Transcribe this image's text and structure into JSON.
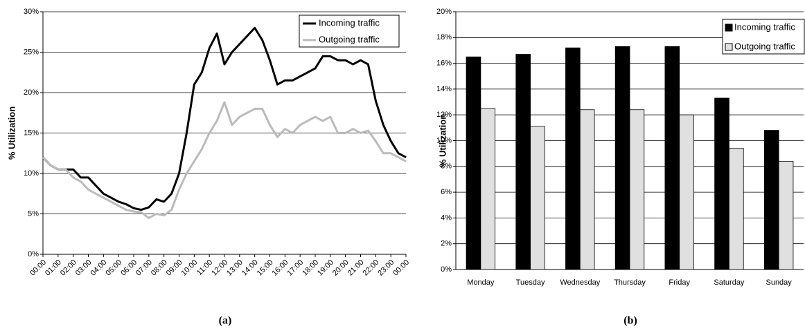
{
  "chart_data": [
    {
      "type": "line",
      "caption": "(a)",
      "y_label": "% Utilization",
      "x": [
        0,
        0.5,
        1,
        1.5,
        2,
        2.5,
        3,
        3.5,
        4,
        4.5,
        5,
        5.5,
        6,
        6.5,
        7,
        7.5,
        8,
        8.5,
        9,
        9.5,
        10,
        10.5,
        11,
        11.5,
        12,
        12.5,
        13,
        13.5,
        14,
        14.5,
        15,
        15.5,
        16,
        16.5,
        17,
        17.5,
        18,
        18.5,
        19,
        19.5,
        20,
        20.5,
        21,
        21.5,
        22,
        22.5,
        23,
        23.5,
        24
      ],
      "series": [
        {
          "name": "Incoming traffic",
          "color": "#000000",
          "values": [
            12,
            11,
            10.5,
            10.5,
            10.5,
            9.5,
            9.5,
            8.5,
            7.5,
            7,
            6.5,
            6.2,
            5.7,
            5.5,
            5.8,
            6.8,
            6.5,
            7.5,
            10,
            15,
            21,
            22.5,
            25.5,
            27.3,
            23.5,
            25,
            26,
            27,
            28,
            26.5,
            24,
            21,
            21.5,
            21.5,
            22,
            22.5,
            23,
            24.5,
            24.5,
            24,
            24,
            23.5,
            24,
            23.5,
            19,
            16,
            14,
            12.5,
            12
          ]
        },
        {
          "name": "Outgoing traffic",
          "color": "#bbbbbb",
          "values": [
            12,
            11,
            10.5,
            10.5,
            9.5,
            9,
            8,
            7.5,
            7,
            6.5,
            6,
            5.5,
            5.3,
            5.2,
            4.5,
            5,
            4.8,
            5.5,
            8,
            10,
            11.5,
            13,
            15,
            16.5,
            18.8,
            16,
            17,
            17.5,
            18,
            18,
            16,
            14.5,
            15.5,
            15,
            16,
            16.5,
            17,
            16.5,
            17,
            15,
            15,
            15.5,
            15,
            15.3,
            14,
            12.5,
            12.5,
            12,
            11.5
          ]
        }
      ],
      "xlim": [
        0,
        24
      ],
      "xticks": [
        {
          "value": 0,
          "label": "00:00"
        },
        {
          "value": 1,
          "label": "01:00"
        },
        {
          "value": 2,
          "label": "02:00"
        },
        {
          "value": 3,
          "label": "03:00"
        },
        {
          "value": 4,
          "label": "04:00"
        },
        {
          "value": 5,
          "label": "05:00"
        },
        {
          "value": 6,
          "label": "06:00"
        },
        {
          "value": 7,
          "label": "07:00"
        },
        {
          "value": 8,
          "label": "08:00"
        },
        {
          "value": 9,
          "label": "09:00"
        },
        {
          "value": 10,
          "label": "10:00"
        },
        {
          "value": 11,
          "label": "11:00"
        },
        {
          "value": 12,
          "label": "12:00"
        },
        {
          "value": 13,
          "label": "13:00"
        },
        {
          "value": 14,
          "label": "14:00"
        },
        {
          "value": 15,
          "label": "15:00"
        },
        {
          "value": 16,
          "label": "16:00"
        },
        {
          "value": 17,
          "label": "17:00"
        },
        {
          "value": 18,
          "label": "18:00"
        },
        {
          "value": 19,
          "label": "19:00"
        },
        {
          "value": 20,
          "label": "20:00"
        },
        {
          "value": 21,
          "label": "21:00"
        },
        {
          "value": 22,
          "label": "22:00"
        },
        {
          "value": 23,
          "label": "23:00"
        },
        {
          "value": 24,
          "label": "00:00"
        }
      ],
      "ylim": [
        0,
        30
      ],
      "yticks": [
        {
          "value": 0,
          "label": "0%"
        },
        {
          "value": 5,
          "label": "5%"
        },
        {
          "value": 10,
          "label": "10%"
        },
        {
          "value": 15,
          "label": "15%"
        },
        {
          "value": 20,
          "label": "20%"
        },
        {
          "value": 25,
          "label": "25%"
        },
        {
          "value": 30,
          "label": "30%"
        }
      ],
      "grid": true,
      "legend": "top-right"
    },
    {
      "type": "bar",
      "caption": "(b)",
      "y_label": "% Utilization",
      "categories": [
        "Monday",
        "Tuesday",
        "Wednesday",
        "Thursday",
        "Friday",
        "Saturday",
        "Sunday"
      ],
      "series": [
        {
          "name": "Incoming traffic",
          "color": "#000000",
          "values": [
            16.5,
            16.7,
            17.2,
            17.3,
            17.3,
            13.3,
            10.8
          ]
        },
        {
          "name": "Outgoing traffic",
          "color": "#e0e0e0",
          "values": [
            12.5,
            11.1,
            12.4,
            12.4,
            12.0,
            9.4,
            8.4
          ]
        }
      ],
      "ylim": [
        0,
        20
      ],
      "yticks": [
        {
          "value": 0,
          "label": "0%"
        },
        {
          "value": 2,
          "label": "2%"
        },
        {
          "value": 4,
          "label": "4%"
        },
        {
          "value": 6,
          "label": "6%"
        },
        {
          "value": 8,
          "label": "8%"
        },
        {
          "value": 10,
          "label": "10%"
        },
        {
          "value": 12,
          "label": "12%"
        },
        {
          "value": 14,
          "label": "14%"
        },
        {
          "value": 16,
          "label": "16%"
        },
        {
          "value": 18,
          "label": "18%"
        },
        {
          "value": 20,
          "label": "20%"
        }
      ],
      "grid": true,
      "legend": "top-right"
    }
  ]
}
